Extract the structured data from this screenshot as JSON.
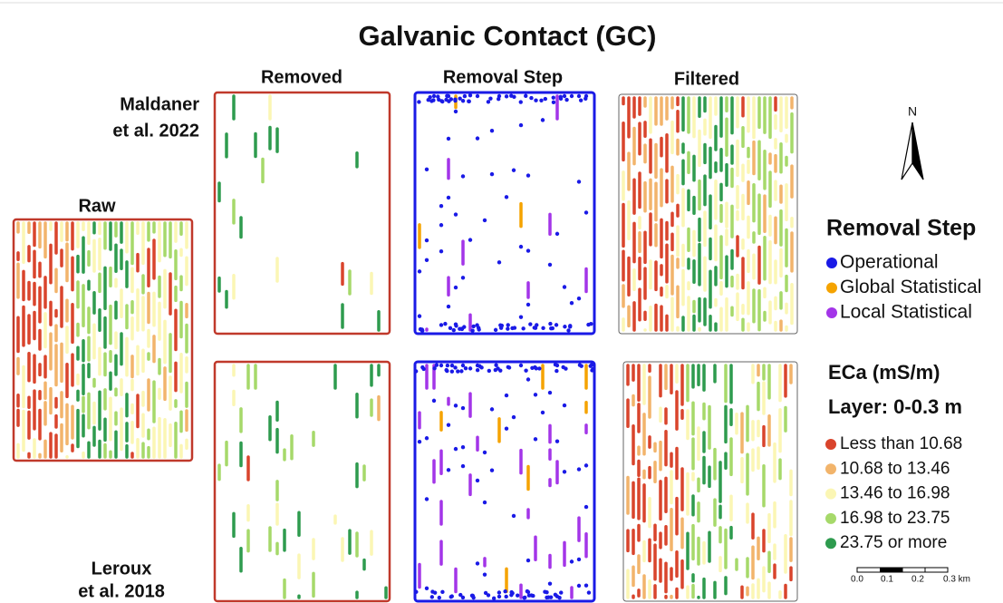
{
  "title": "Galvanic Contact (GC)",
  "columns": [
    "Removed",
    "Removal Step",
    "Filtered"
  ],
  "raw_label": "Raw",
  "rows": [
    {
      "label": [
        "Maldaner",
        "et al. 2022"
      ]
    },
    {
      "label": [
        "Leroux",
        "et al. 2018"
      ]
    }
  ],
  "north": "N",
  "removal_legend": {
    "title": "Removal Step",
    "items": [
      {
        "label": "Operational",
        "color": "#1a1ae6"
      },
      {
        "label": "Global Statistical",
        "color": "#f5a300"
      },
      {
        "label": "Local Statistical",
        "color": "#a335e8"
      }
    ]
  },
  "eca_legend": {
    "title": "ECa (mS/m)",
    "subtitle": "Layer: 0-0.3 m",
    "items": [
      {
        "label": "Less than 10.68",
        "color": "#d9442c"
      },
      {
        "label": "10.68 to 13.46",
        "color": "#f2b46b"
      },
      {
        "label": "13.46 to 16.98",
        "color": "#fbf6b4"
      },
      {
        "label": "16.98 to 23.75",
        "color": "#a6d96a"
      },
      {
        "label": "23.75 or more",
        "color": "#2e9b4e"
      }
    ]
  },
  "scale_bar": {
    "labels": [
      "0.0",
      "0.1",
      "0.2",
      "0.3 km"
    ]
  }
}
